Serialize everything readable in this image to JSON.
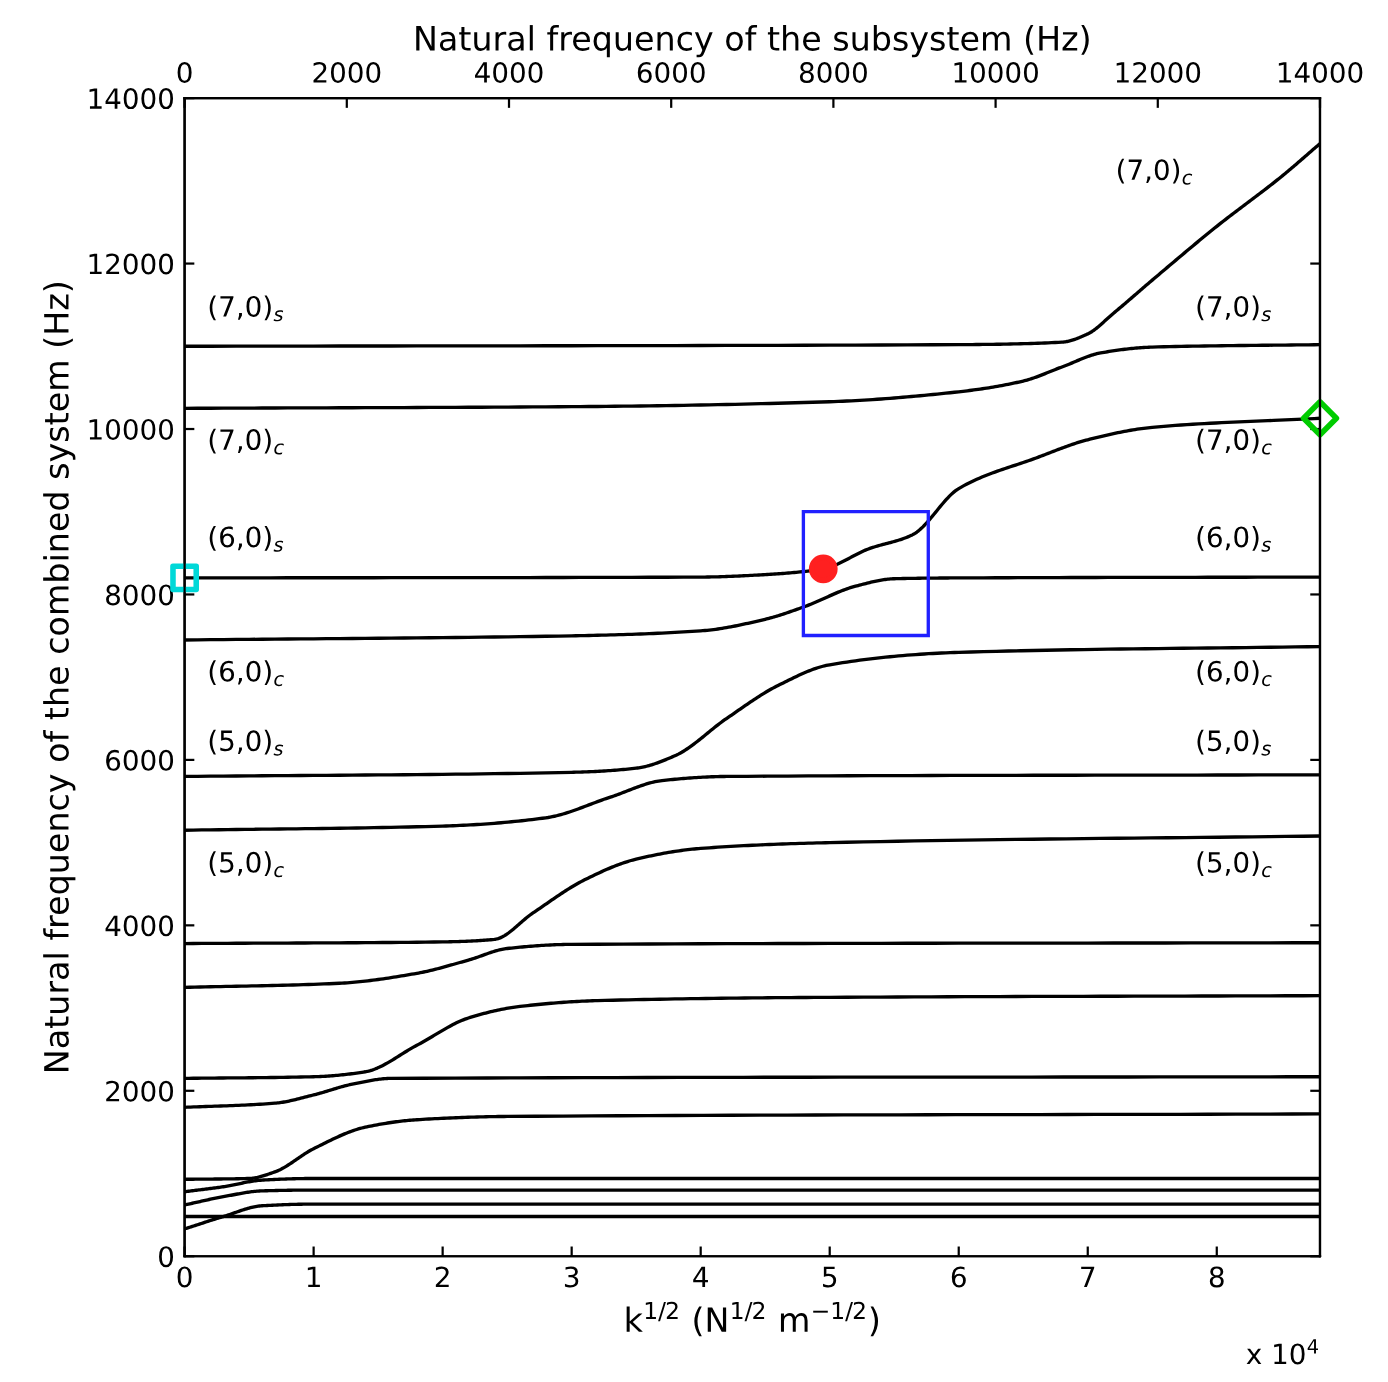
{
  "chart_data": {
    "type": "line",
    "x2label": "Natural frequency of the subsystem (Hz)",
    "xlabel": "k$^{1/2}$ (N$^{1/2}$ m$^{−1/2}$)",
    "ylabel": "Natural frequency of the combined system (Hz)",
    "xlim": [
      0,
      8.8
    ],
    "ylim": [
      0,
      14000
    ],
    "x2lim": [
      0,
      14000
    ],
    "xticks": [
      0,
      1,
      2,
      3,
      4,
      5,
      6,
      7,
      8
    ],
    "yticks": [
      0,
      2000,
      4000,
      6000,
      8000,
      10000,
      12000,
      14000
    ],
    "x2ticks": [
      0,
      2000,
      4000,
      6000,
      8000,
      10000,
      12000,
      14000
    ],
    "grid": false,
    "legend": false,
    "series": [
      {
        "color": "#000000",
        "x": [
          0,
          6.0,
          6.8,
          7.0,
          7.2,
          7.5,
          8.0,
          8.5,
          8.8
        ],
        "values": [
          11000,
          11020,
          11050,
          11150,
          11400,
          11800,
          12450,
          13050,
          13450
        ]
      },
      {
        "color": "#000000",
        "x": [
          0,
          3.0,
          5.0,
          6.0,
          6.5,
          6.8,
          7.1,
          7.5,
          8.8
        ],
        "values": [
          10250,
          10270,
          10330,
          10450,
          10580,
          10750,
          10920,
          10990,
          11020
        ]
      },
      {
        "color": "#000000",
        "x": [
          0,
          4.0,
          4.5,
          4.95,
          5.3,
          5.64,
          6.0,
          6.6,
          7.0,
          7.5,
          8.8
        ],
        "values": [
          8200,
          8210,
          8240,
          8310,
          8550,
          8720,
          9280,
          9650,
          9870,
          10020,
          10130
        ]
      },
      {
        "color": "#000000",
        "x": [
          0,
          3.0,
          4.0,
          4.5,
          4.8,
          5.2,
          5.5,
          6.0,
          8.8
        ],
        "values": [
          7450,
          7500,
          7560,
          7700,
          7850,
          8100,
          8190,
          8200,
          8210
        ]
      },
      {
        "color": "#000000",
        "x": [
          0,
          3.0,
          3.5,
          3.8,
          4.2,
          4.6,
          5.0,
          6.0,
          8.8
        ],
        "values": [
          5800,
          5850,
          5900,
          6050,
          6500,
          6900,
          7150,
          7300,
          7370
        ]
      },
      {
        "color": "#000000",
        "x": [
          0,
          2.0,
          2.8,
          3.3,
          3.7,
          4.2,
          8.8
        ],
        "values": [
          5150,
          5200,
          5300,
          5550,
          5750,
          5800,
          5820
        ]
      },
      {
        "color": "#000000",
        "x": [
          0,
          2.0,
          2.4,
          2.7,
          3.1,
          3.5,
          4.0,
          5.0,
          8.8
        ],
        "values": [
          3780,
          3800,
          3830,
          4150,
          4550,
          4800,
          4930,
          5000,
          5080
        ]
      },
      {
        "color": "#000000",
        "x": [
          0,
          1.2,
          1.8,
          2.2,
          2.5,
          3.0,
          8.8
        ],
        "values": [
          3250,
          3300,
          3420,
          3580,
          3720,
          3770,
          3790
        ]
      },
      {
        "color": "#000000",
        "x": [
          0,
          1.0,
          1.4,
          1.8,
          2.2,
          2.6,
          3.2,
          5.0,
          8.8
        ],
        "values": [
          2150,
          2170,
          2230,
          2550,
          2880,
          3020,
          3090,
          3130,
          3150
        ]
      },
      {
        "color": "#000000",
        "x": [
          0,
          0.7,
          1.0,
          1.3,
          1.6,
          8.8
        ],
        "values": [
          1800,
          1850,
          1950,
          2080,
          2150,
          2170
        ]
      },
      {
        "color": "#000000",
        "x": [
          0,
          0.5,
          0.7,
          1.0,
          1.4,
          1.8,
          2.5,
          8.8
        ],
        "values": [
          930,
          940,
          1020,
          1300,
          1560,
          1650,
          1690,
          1720
        ]
      },
      {
        "color": "#000000",
        "x": [
          0,
          0.3,
          0.6,
          1.0,
          8.8
        ],
        "values": [
          780,
          840,
          920,
          940,
          940
        ]
      },
      {
        "color": "#000000",
        "x": [
          0,
          0.3,
          0.6,
          1.0,
          8.8
        ],
        "values": [
          620,
          720,
          790,
          800,
          800
        ]
      },
      {
        "color": "#000000",
        "x": [
          0,
          0.3,
          0.6,
          1.0,
          8.8
        ],
        "values": [
          330,
          480,
          610,
          630,
          630
        ]
      },
      {
        "color": "#000000",
        "x": [
          0,
          8.8
        ],
        "values": [
          480,
          480
        ]
      },
      {
        "type": "scatter",
        "marker": "circle",
        "color": "#ff2020",
        "x": [
          4.95
        ],
        "values": [
          8310
        ]
      },
      {
        "type": "scatter",
        "marker": "square",
        "color": "#00d8d8",
        "x": [
          0
        ],
        "values": [
          8200
        ]
      },
      {
        "type": "scatter",
        "marker": "diamond",
        "color": "#00cc00",
        "x": [
          8.8
        ],
        "values": [
          10130
        ]
      }
    ],
    "annotations": [
      "(7,0)$_{c}$",
      "(7,0)$_{s}$",
      "(7,0)$_{s}$",
      "(7,0)$_{c}$",
      "(7,0)$_{c}$",
      "(6,0)$_{s}$",
      "(6,0)$_{s}$",
      "(6,0)$_{c}$",
      "(6,0)$_{c}$",
      "(5,0)$_{s}$",
      "(5,0)$_{s}$",
      "(5,0)$_{c}$",
      "(5,0)$_{c}$",
      "x 10$^{4}$"
    ]
  }
}
